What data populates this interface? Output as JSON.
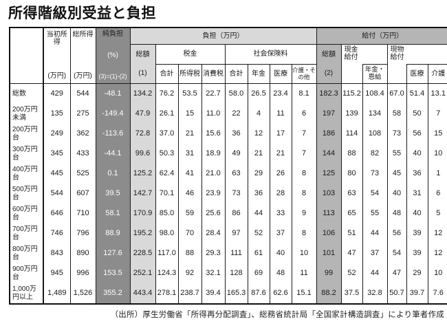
{
  "page": {
    "title": "所得階級別受益と負担",
    "source_note": "（出所）厚生労働省「所得再分配調査」、総務省統計局「全国家計構造調査」により筆者作成"
  },
  "colors": {
    "dark_column": "#8c8c8c",
    "light_band": "#d9d9d9",
    "mid_band": "#b5b5b5",
    "border": "#1a1a1a"
  },
  "table": {
    "columns": {
      "initial_income": {
        "label": "当初所得",
        "unit": "(万円)"
      },
      "gross_income": {
        "label": "総所得",
        "unit": "(万円)"
      },
      "net_burden": {
        "label": "純負担",
        "unit": "(%)",
        "formula": "(3)=(1)-(2)"
      },
      "burden": {
        "group": "負担（万円）",
        "total": "総額",
        "total_num": "(1)",
        "tax": {
          "group": "税金",
          "cols": [
            "合計",
            "所得税",
            "消費税"
          ]
        },
        "social": {
          "group": "社会保険料",
          "cols": [
            "合計",
            "年金",
            "医療",
            "介護・その他"
          ]
        }
      },
      "benefit": {
        "group": "給付（万円）",
        "total": "総額",
        "total_num": "(2)",
        "cash": {
          "group": "現金給付",
          "sub": "年金・恩給"
        },
        "inkind": {
          "group": "現物給付",
          "subs": [
            "医療",
            "介護"
          ]
        }
      }
    },
    "rows": [
      {
        "label": "総数",
        "values": [
          "429",
          "544",
          "-48.1",
          "134.2",
          "76.2",
          "53.5",
          "22.7",
          "58.0",
          "26.5",
          "23.4",
          "8.1",
          "182.3",
          "115.2",
          "108.4",
          "67.0",
          "51.4",
          "13.1"
        ]
      },
      {
        "label": "200万円未満",
        "values": [
          "135",
          "275",
          "-149.4",
          "47.9",
          "26.1",
          "15",
          "11.0",
          "22",
          "4",
          "11",
          "6",
          "197",
          "139",
          "134",
          "58",
          "50",
          "7"
        ]
      },
      {
        "label": "200万円台",
        "values": [
          "249",
          "362",
          "-113.6",
          "72.8",
          "37.0",
          "21",
          "15.6",
          "36",
          "12",
          "17",
          "7",
          "186",
          "114",
          "108",
          "73",
          "56",
          "15"
        ]
      },
      {
        "label": "300万円台",
        "values": [
          "345",
          "433",
          "-44.1",
          "99.6",
          "50.3",
          "31",
          "18.9",
          "49",
          "21",
          "21",
          "7",
          "144",
          "88",
          "82",
          "55",
          "40",
          "10"
        ]
      },
      {
        "label": "400万円台",
        "values": [
          "445",
          "525",
          "0.1",
          "125.2",
          "62.4",
          "41",
          "21.0",
          "63",
          "29",
          "26",
          "8",
          "125",
          "80",
          "73",
          "45",
          "36",
          "1"
        ]
      },
      {
        "label": "500万円台",
        "values": [
          "544",
          "607",
          "39.5",
          "142.7",
          "70.1",
          "46",
          "23.9",
          "73",
          "36",
          "28",
          "8",
          "103",
          "63",
          "54",
          "40",
          "31",
          "6"
        ]
      },
      {
        "label": "600万円台",
        "values": [
          "646",
          "710",
          "58.1",
          "170.9",
          "85.0",
          "59",
          "25.6",
          "86",
          "44",
          "33",
          "9",
          "113",
          "65",
          "55",
          "48",
          "40",
          "5"
        ]
      },
      {
        "label": "700万円台",
        "values": [
          "746",
          "796",
          "88.9",
          "195.2",
          "98.0",
          "70",
          "28.4",
          "97",
          "52",
          "37",
          "8",
          "106",
          "51",
          "44",
          "56",
          "39",
          "12"
        ]
      },
      {
        "label": "800万円台",
        "values": [
          "843",
          "890",
          "127.6",
          "228.5",
          "117.0",
          "88",
          "29.3",
          "111",
          "61",
          "40",
          "10",
          "101",
          "47",
          "37",
          "54",
          "39",
          "12"
        ]
      },
      {
        "label": "900万円台",
        "values": [
          "945",
          "996",
          "153.5",
          "252.1",
          "124.3",
          "92",
          "32.1",
          "128",
          "69",
          "48",
          "11",
          "99",
          "52",
          "44",
          "47",
          "29",
          "10"
        ]
      },
      {
        "label": "1,000万円以上",
        "values": [
          "1,489",
          "1,526",
          "355.2",
          "443.4",
          "278.1",
          "238.7",
          "39.4",
          "165.3",
          "87.6",
          "62.6",
          "15.1",
          "88.2",
          "37.5",
          "32.8",
          "50.7",
          "39.7",
          "7.6"
        ]
      }
    ]
  }
}
